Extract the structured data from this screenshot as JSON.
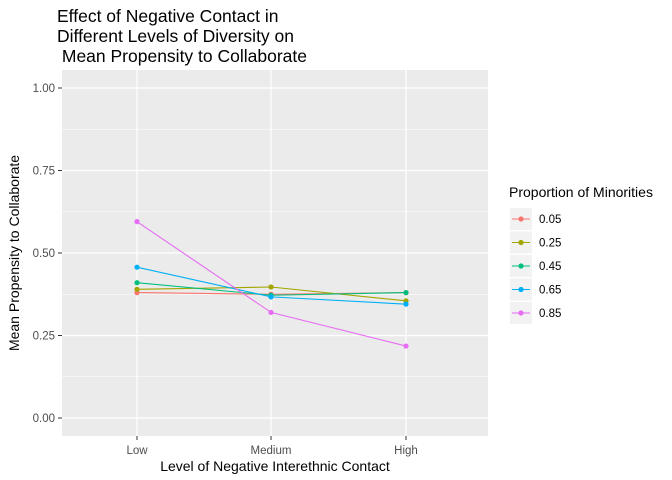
{
  "chart_data": {
    "type": "line",
    "title_lines": [
      "Effect of Negative Contact in",
      "Different Levels of Diversity on",
      " Mean Propensity to Collaborate"
    ],
    "xlabel": "Level of Negative Interethnic Contact",
    "ylabel": "Mean Propensity to Collaborate",
    "categories": [
      "Low",
      "Medium",
      "High"
    ],
    "ylim": [
      0,
      1
    ],
    "yticks": [
      "0.00",
      "0.25",
      "0.50",
      "0.75",
      "1.00"
    ],
    "grid": true,
    "legend": {
      "title": "Proportion of Minorities",
      "placement": "right"
    },
    "series": [
      {
        "name": "0.05",
        "color": "#F8766D",
        "values": [
          0.38,
          0.375,
          0.38
        ]
      },
      {
        "name": "0.25",
        "color": "#A3A500",
        "values": [
          0.39,
          0.397,
          0.355
        ]
      },
      {
        "name": "0.45",
        "color": "#00BF7D",
        "values": [
          0.41,
          0.372,
          0.38
        ]
      },
      {
        "name": "0.65",
        "color": "#00B0F6",
        "values": [
          0.457,
          0.367,
          0.345
        ]
      },
      {
        "name": "0.85",
        "color": "#E76BF3",
        "values": [
          0.595,
          0.32,
          0.218
        ]
      }
    ]
  }
}
